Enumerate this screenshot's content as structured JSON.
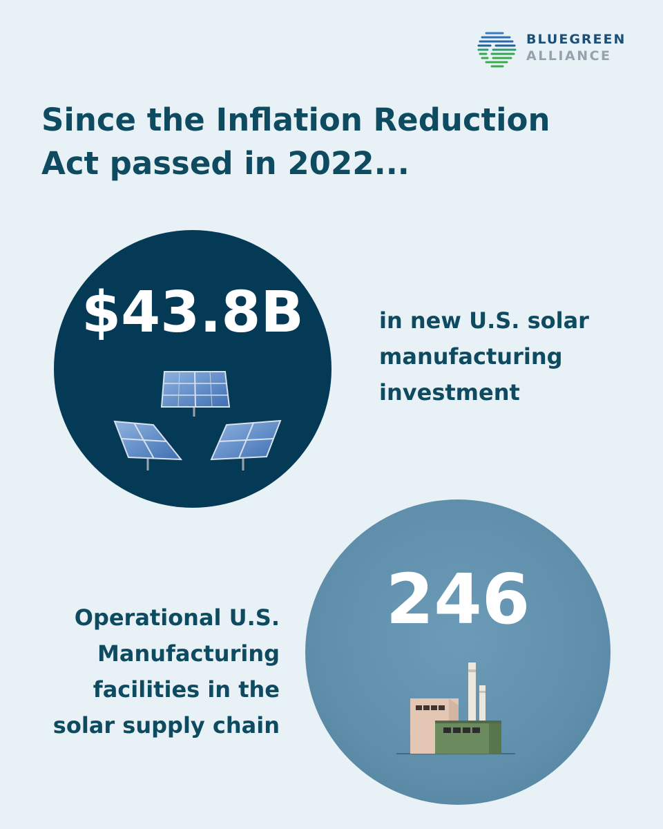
{
  "logo": {
    "line1": "BLUEGREEN",
    "line2": "ALLIANCE",
    "icon": "bluegreen-logo-icon"
  },
  "headline": "Since the Inflation Reduction Act passed in 2022...",
  "stat1": {
    "value": "$43.8B",
    "description": "in new U.S. solar manufacturing investment",
    "icon": "solar-panels-icon"
  },
  "stat2": {
    "value": "246",
    "description": "Operational U.S. Manufacturing facilities in the solar supply chain",
    "icon": "factory-icon"
  },
  "colors": {
    "background": "#e8f1f6",
    "dark_circle": "#053a57",
    "light_circle": "#6b9bb6",
    "text": "#0e4a60",
    "logo_blue": "#1c4f78",
    "logo_green": "#3aaa4a"
  }
}
